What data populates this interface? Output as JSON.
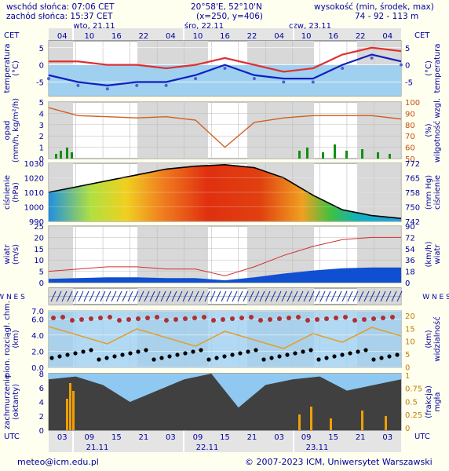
{
  "header": {
    "sunrise": "wschód słońca: 07:06 CET",
    "sunset": "zachód słońca: 15:37 CET",
    "coords": "20°58'E, 52°10'N",
    "grid": "(x=250, y=406)",
    "elevation_label": "wysokość (min, środek, max)",
    "elevation_values": "74 - 92 - 113 m"
  },
  "top_axis": {
    "tz": "CET",
    "ticks": [
      "04",
      "10",
      "16",
      "22",
      "04",
      "10",
      "16",
      "22",
      "04",
      "10",
      "16",
      "22",
      "04"
    ],
    "days": [
      "wto, 21.11",
      "śro, 22.11",
      "czw, 23.11"
    ]
  },
  "bottom_axis": {
    "tz": "UTC",
    "ticks": [
      "03",
      "09",
      "15",
      "21",
      "03",
      "09",
      "15",
      "21",
      "03",
      "09",
      "15",
      "21",
      "03"
    ],
    "dates": [
      "21.11",
      "22.11",
      "23.11"
    ]
  },
  "panels": {
    "temp": {
      "left": "temperatura\n(°C)",
      "right": "(°C)\ntemperatura",
      "ticks": [
        "5",
        "0",
        "-5"
      ]
    },
    "precip": {
      "left": "opad\n(mm/h, kg/m²/h)",
      "right": "(%)\nwilgotność wzgl.",
      "ticks_left": [
        "5",
        "4",
        "3",
        "2",
        "1",
        "0"
      ],
      "ticks_right": [
        "100",
        "90",
        "80",
        "70",
        "60",
        "50"
      ]
    },
    "pressure": {
      "left": "ciśnienie\n(hPa)",
      "right": "(mm Hg)\nciśnienie",
      "ticks_left": [
        "1030",
        "1020",
        "1010",
        "1000",
        "990"
      ],
      "ticks_right": [
        "772",
        "765",
        "758",
        "750",
        "742"
      ]
    },
    "wind": {
      "left": "wiatr\n(m/s)",
      "right": "(km/h)\nwiatr",
      "ticks_left": [
        "25",
        "20",
        "15",
        "10",
        "5",
        "0"
      ],
      "ticks_right": [
        "90",
        "72",
        "54",
        "36",
        "18",
        "0"
      ]
    },
    "dir": {
      "left": "W N E S",
      "right": "W N E S"
    },
    "cloud": {
      "left": "pion. rozciągł. chm.\n(km)",
      "right": "(km)\nwidzialność",
      "ticks_left": [
        "7.0",
        "6.0",
        "4.0",
        "2.0",
        "0.0"
      ],
      "ticks_right": [
        "20",
        "15",
        "10",
        "5",
        "0"
      ]
    },
    "cover": {
      "left": "zachmurzenie\n(oktanty)",
      "right": "(frakcja)\nmgła",
      "ticks_left": [
        "8",
        "6",
        "4",
        "2",
        "0"
      ],
      "ticks_right": [
        "1",
        "0.75",
        "0.5",
        "0.25",
        "0"
      ]
    }
  },
  "footer": {
    "email": "meteo@icm.edu.pl",
    "copyright": "© 2007-2023 ICM, Uniwersytet Warszawski"
  },
  "chart_data": {
    "type": "line",
    "x": [
      "21.11 03",
      "21.11 09",
      "21.11 15",
      "21.11 21",
      "22.11 03",
      "22.11 09",
      "22.11 15",
      "22.11 21",
      "23.11 03",
      "23.11 09",
      "23.11 15",
      "23.11 21",
      "24.11 03"
    ],
    "series": [
      {
        "values": [
          1,
          1,
          0,
          0,
          -1,
          0,
          2,
          0,
          -2,
          -1,
          3,
          5,
          4
        ]
      },
      {
        "values": [
          -3,
          -5,
          -6,
          -5,
          -5,
          -3,
          0,
          -3,
          -4,
          -4,
          0,
          3,
          1
        ]
      },
      {
        "values": [
          1010,
          1014,
          1018,
          1022,
          1026,
          1028,
          1029,
          1027,
          1020,
          1008,
          998,
          994,
          992
        ]
      },
      {
        "values": [
          5,
          6,
          7,
          7,
          6,
          6,
          3,
          7,
          12,
          16,
          19,
          20,
          20
        ]
      },
      {
        "values": [
          95,
          88,
          87,
          86,
          87,
          84,
          60,
          82,
          86,
          88,
          88,
          88,
          85
        ]
      }
    ],
    "ylim_temp": [
      -9,
      7
    ],
    "ylim_pressure": [
      990,
      1030
    ],
    "ylim_wind": [
      0,
      25
    ]
  }
}
